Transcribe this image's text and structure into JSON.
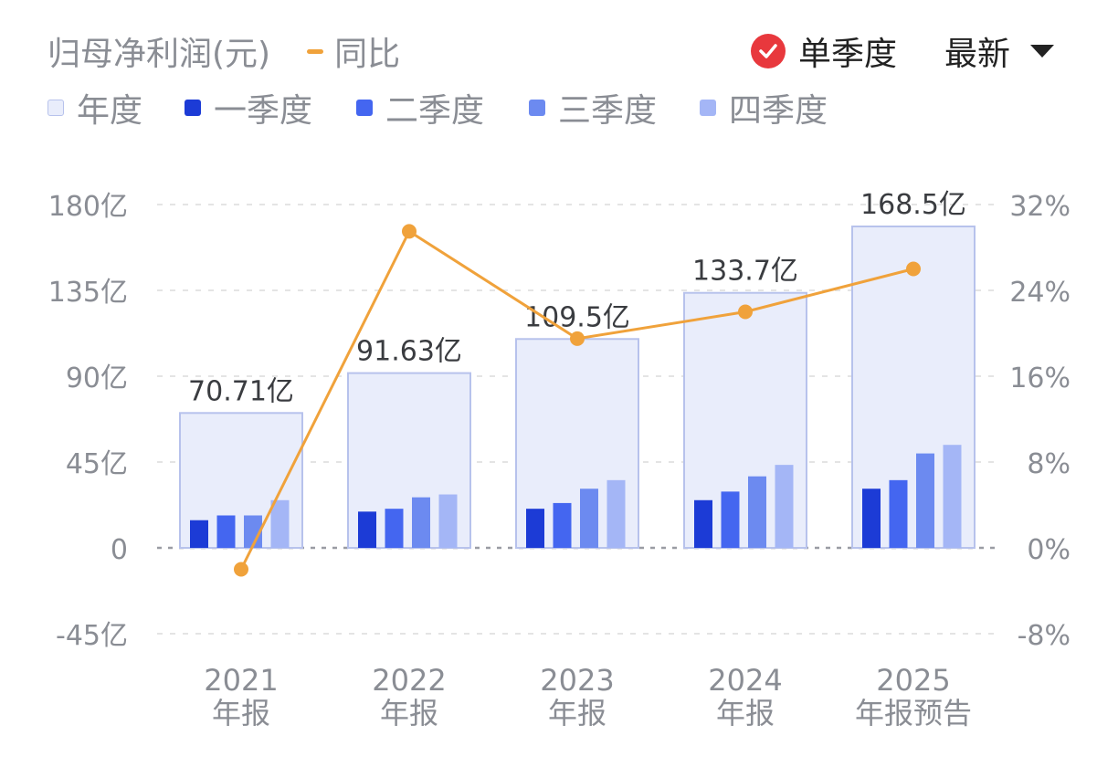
{
  "header": {
    "metric_label": "归母净利润(元)",
    "yoy_label": "同比",
    "quarterly_toggle_label": "单季度",
    "period_select_value": "最新"
  },
  "legend": {
    "annual": "年度",
    "q1": "一季度",
    "q2": "二季度",
    "q3": "三季度",
    "q4": "四季度"
  },
  "colors": {
    "annual_fill": "#e9edfb",
    "annual_stroke": "#b7c2ec",
    "q1": "#1c3bd6",
    "q2": "#4466f0",
    "q3": "#6c8af0",
    "q4": "#a4b6f6",
    "yoy_line": "#f0a23b",
    "toggle_check": "#e8383d",
    "grid": "#e4e4e4",
    "axis_text": "#8a8d94"
  },
  "chart_data": {
    "type": "bar",
    "categories": [
      "2021\n年报",
      "2022\n年报",
      "2023\n年报",
      "2024\n年报",
      "2025\n年报预告"
    ],
    "series": [
      {
        "name": "年度",
        "values": [
          70.71,
          91.63,
          109.5,
          133.7,
          168.5
        ],
        "labels": [
          "70.71亿",
          "91.63亿",
          "109.5亿",
          "133.7亿",
          "168.5亿"
        ]
      },
      {
        "name": "一季度",
        "values": [
          14.5,
          19,
          20.5,
          25,
          31
        ]
      },
      {
        "name": "二季度",
        "values": [
          17,
          20.5,
          23.5,
          29.5,
          35.5
        ]
      },
      {
        "name": "三季度",
        "values": [
          17,
          26.5,
          31,
          37.5,
          49.5
        ]
      },
      {
        "name": "四季度",
        "values": [
          25,
          28,
          35.5,
          43.5,
          54
        ]
      }
    ],
    "line_series": {
      "name": "同比",
      "axis": "right",
      "values": [
        -2.0,
        29.5,
        19.5,
        22.0,
        26.0
      ]
    },
    "y_left": {
      "min": -45,
      "max": 180,
      "ticks": [
        -45,
        0,
        45,
        90,
        135,
        180
      ],
      "tick_labels": [
        "-45亿",
        "0",
        "45亿",
        "90亿",
        "135亿",
        "180亿"
      ]
    },
    "y_right": {
      "min": -8,
      "max": 32,
      "ticks": [
        -8,
        0,
        8,
        16,
        24,
        32
      ],
      "tick_labels": [
        "-8%",
        "0%",
        "8%",
        "16%",
        "24%",
        "32%"
      ]
    },
    "grid": true,
    "legend_position": "top-left"
  }
}
